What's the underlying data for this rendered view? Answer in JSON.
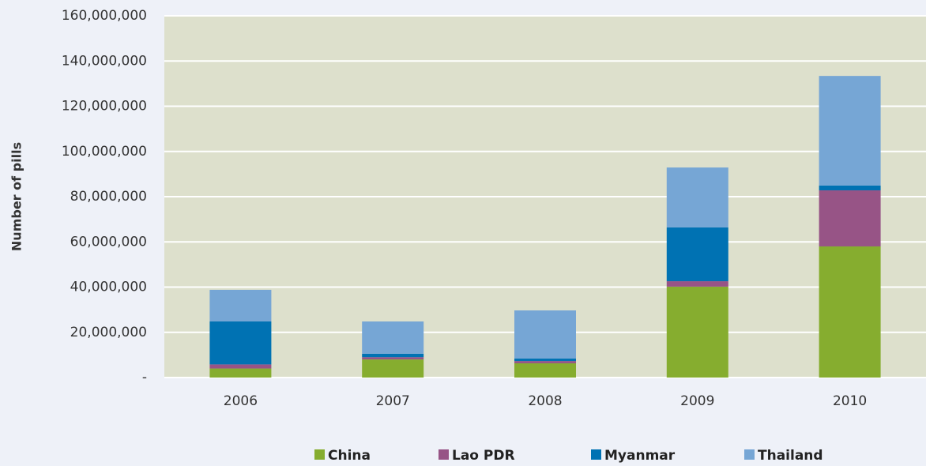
{
  "chart_data": {
    "type": "stacked_bar",
    "y_label": "Number of pills",
    "categories": [
      "2006",
      "2007",
      "2008",
      "2009",
      "2010"
    ],
    "series": [
      {
        "name": "China",
        "color": "#86ad2f",
        "values": [
          4000000,
          8000000,
          6300000,
          40200000,
          58000000
        ]
      },
      {
        "name": "Lao PDR",
        "color": "#975486",
        "values": [
          1800000,
          1000000,
          1000000,
          2400000,
          24800000
        ]
      },
      {
        "name": "Myanmar",
        "color": "#0072b3",
        "values": [
          19000000,
          1500000,
          1100000,
          23800000,
          2100000
        ]
      },
      {
        "name": "Thailand",
        "color": "#76a6d5",
        "values": [
          14000000,
          14300000,
          21300000,
          26500000,
          48500000
        ]
      }
    ],
    "ylim": [
      0,
      160000000
    ],
    "yticks": [
      {
        "value": 0,
        "label": "-"
      },
      {
        "value": 20000000,
        "label": "20,000,000"
      },
      {
        "value": 40000000,
        "label": "40,000,000"
      },
      {
        "value": 60000000,
        "label": "60,000,000"
      },
      {
        "value": 80000000,
        "label": "80,000,000"
      },
      {
        "value": 100000000,
        "label": "100,000,000"
      },
      {
        "value": 120000000,
        "label": "120,000,000"
      },
      {
        "value": 140000000,
        "label": "140,000,000"
      },
      {
        "value": 160000000,
        "label": "160,000,000"
      }
    ],
    "grid": true
  }
}
